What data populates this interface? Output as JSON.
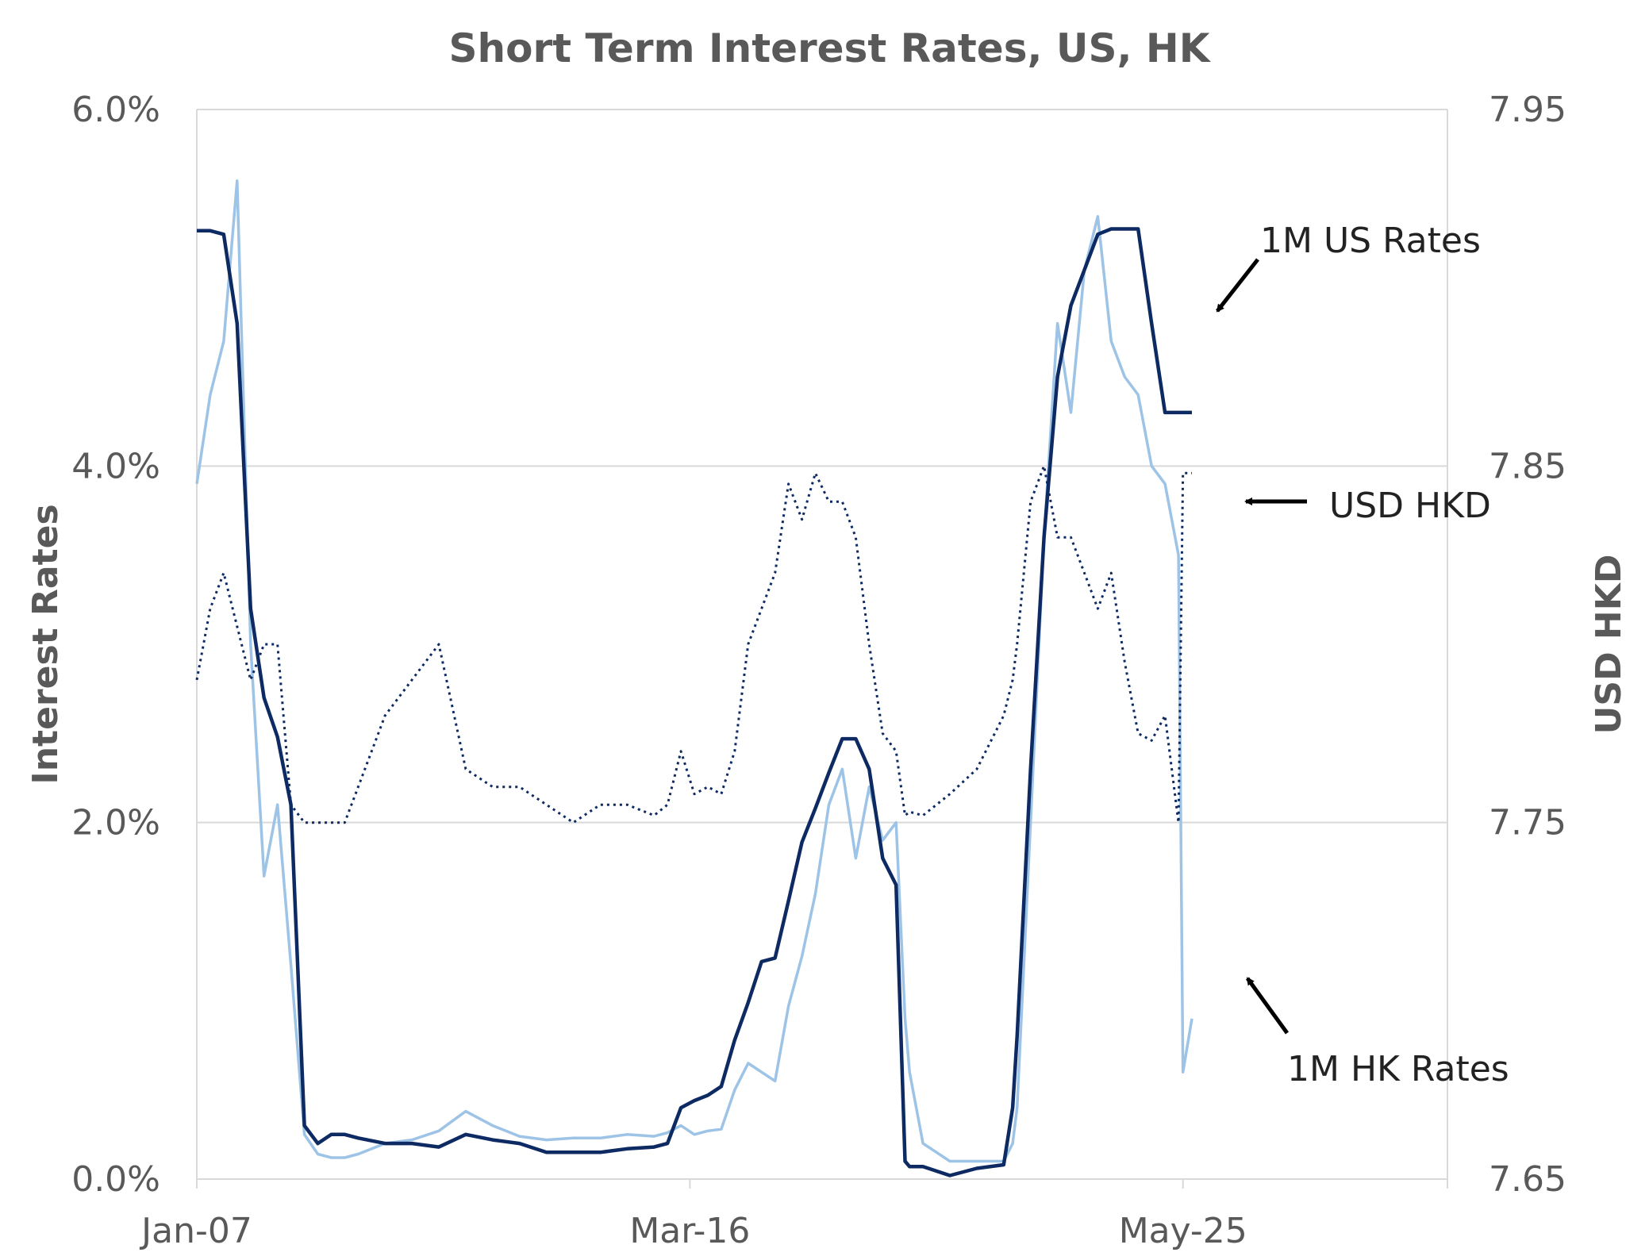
{
  "chart_data": {
    "type": "line",
    "title": "Short Term Interest Rates, US, HK",
    "ylabel": "Interest  Rates",
    "y2label": "USD  HKD",
    "x_tick_labels": [
      "Jan-07",
      "Mar-16",
      "May-25"
    ],
    "x_range": [
      "2007-01",
      "2030-04"
    ],
    "ylim": [
      0,
      6
    ],
    "y_ticks": [
      "0.0%",
      "2.0%",
      "4.0%",
      "6.0%"
    ],
    "y_tick_values": [
      0,
      2,
      4,
      6
    ],
    "y2lim": [
      7.65,
      7.95
    ],
    "y2_ticks": [
      "7.65",
      "7.75",
      "7.85",
      "7.95"
    ],
    "y2_tick_values": [
      7.65,
      7.75,
      7.85,
      7.95
    ],
    "grid": "horizontal",
    "x": [
      "2007-01",
      "2007-04",
      "2007-07",
      "2007-10",
      "2008-01",
      "2008-04",
      "2008-07",
      "2008-10",
      "2009-01",
      "2009-04",
      "2009-07",
      "2009-10",
      "2010-01",
      "2010-07",
      "2011-01",
      "2011-07",
      "2012-01",
      "2012-07",
      "2013-01",
      "2013-07",
      "2014-01",
      "2014-07",
      "2015-01",
      "2015-07",
      "2015-10",
      "2016-01",
      "2016-04",
      "2016-07",
      "2016-10",
      "2017-01",
      "2017-04",
      "2017-07",
      "2017-10",
      "2018-01",
      "2018-04",
      "2018-07",
      "2018-10",
      "2019-01",
      "2019-04",
      "2019-07",
      "2019-10",
      "2020-01",
      "2020-03",
      "2020-04",
      "2020-07",
      "2021-01",
      "2021-07",
      "2022-01",
      "2022-03",
      "2022-04",
      "2022-07",
      "2022-10",
      "2023-01",
      "2023-04",
      "2023-07",
      "2023-10",
      "2024-01",
      "2024-04",
      "2024-07",
      "2024-10",
      "2025-01",
      "2025-04",
      "2025-05",
      "2025-07"
    ],
    "series": [
      {
        "name": "1M US Rates",
        "axis": "left",
        "color": "#0d2a63",
        "values": [
          5.32,
          5.32,
          5.3,
          4.8,
          3.2,
          2.7,
          2.48,
          2.1,
          0.3,
          0.2,
          0.25,
          0.25,
          0.23,
          0.2,
          0.2,
          0.18,
          0.25,
          0.22,
          0.2,
          0.15,
          0.15,
          0.15,
          0.17,
          0.18,
          0.2,
          0.4,
          0.44,
          0.47,
          0.52,
          0.78,
          0.99,
          1.22,
          1.24,
          1.56,
          1.89,
          2.08,
          2.28,
          2.47,
          2.47,
          2.3,
          1.8,
          1.65,
          0.1,
          0.07,
          0.07,
          0.02,
          0.06,
          0.08,
          0.4,
          0.8,
          2.3,
          3.6,
          4.5,
          4.9,
          5.1,
          5.3,
          5.33,
          5.33,
          5.33,
          4.8,
          4.3,
          4.3,
          4.3,
          4.3
        ]
      },
      {
        "name": "1M HK Rates",
        "axis": "left",
        "color": "#9dc3e6",
        "values": [
          3.9,
          4.4,
          4.7,
          5.6,
          3.0,
          1.7,
          2.1,
          1.2,
          0.25,
          0.14,
          0.12,
          0.12,
          0.14,
          0.2,
          0.22,
          0.27,
          0.38,
          0.3,
          0.24,
          0.22,
          0.23,
          0.23,
          0.25,
          0.24,
          0.26,
          0.3,
          0.25,
          0.27,
          0.28,
          0.5,
          0.65,
          0.6,
          0.55,
          0.97,
          1.25,
          1.6,
          2.1,
          2.3,
          1.8,
          2.2,
          1.9,
          2.0,
          0.9,
          0.6,
          0.2,
          0.1,
          0.1,
          0.1,
          0.2,
          0.4,
          2.0,
          3.6,
          4.8,
          4.3,
          5.1,
          5.4,
          4.7,
          4.5,
          4.4,
          4.0,
          3.9,
          3.5,
          0.6,
          0.9
        ]
      },
      {
        "name": "USD HKD",
        "axis": "right",
        "color": "#0d2a63",
        "values": [
          7.79,
          7.81,
          7.82,
          7.805,
          7.79,
          7.8,
          7.8,
          7.755,
          7.75,
          7.75,
          7.75,
          7.75,
          7.76,
          7.78,
          7.79,
          7.8,
          7.765,
          7.76,
          7.76,
          7.755,
          7.75,
          7.755,
          7.755,
          7.752,
          7.755,
          7.77,
          7.758,
          7.76,
          7.758,
          7.77,
          7.8,
          7.81,
          7.82,
          7.845,
          7.835,
          7.848,
          7.84,
          7.84,
          7.83,
          7.8,
          7.775,
          7.77,
          7.752,
          7.753,
          7.752,
          7.758,
          7.765,
          7.78,
          7.79,
          7.8,
          7.84,
          7.85,
          7.83,
          7.83,
          7.82,
          7.81,
          7.82,
          7.795,
          7.775,
          7.773,
          7.78,
          7.75,
          7.848,
          7.848
        ]
      }
    ],
    "annotations": [
      {
        "text": "1M US Rates",
        "series": "1M US Rates"
      },
      {
        "text": "USD HKD",
        "series": "USD HKD"
      },
      {
        "text": "1M HK Rates",
        "series": "1M HK Rates"
      }
    ]
  }
}
